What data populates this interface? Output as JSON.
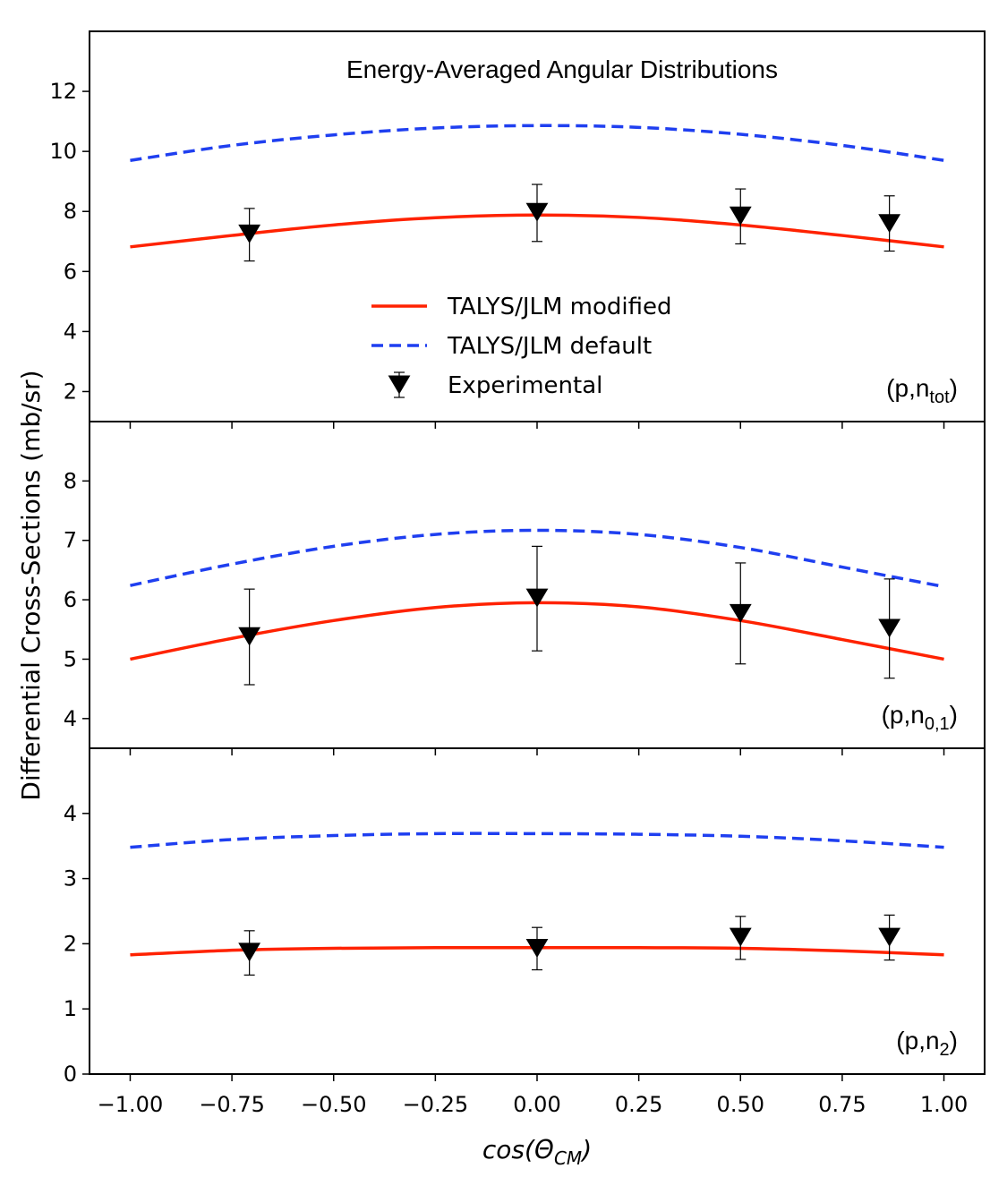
{
  "chart_data": {
    "type": "line",
    "title": "Energy-Averaged Angular Distributions",
    "xlabel": "cos(Θ_CM)",
    "ylabel": "Differential Cross-Sections (mb/sr)",
    "xlim": [
      -1.1,
      1.1
    ],
    "xticks": [
      -1.0,
      -0.75,
      -0.5,
      -0.25,
      0.0,
      0.25,
      0.5,
      0.75,
      1.0
    ],
    "xtick_labels": [
      "−1.00",
      "−0.75",
      "−0.50",
      "−0.25",
      "0.00",
      "0.25",
      "0.50",
      "0.75",
      "1.00"
    ],
    "grid": false,
    "legend": {
      "placement": "top-panel-center",
      "entries": [
        {
          "label": "TALYS/JLM modified",
          "style": "solid",
          "color": "#ff2200"
        },
        {
          "label": "TALYS/JLM default",
          "style": "dashed",
          "color": "#1f3ff0"
        },
        {
          "label": "Experimental",
          "style": "marker-triangle-down",
          "color": "#000000"
        }
      ]
    },
    "panels": [
      {
        "label_main": "(p,n",
        "label_sub": "tot",
        "label_close": ")",
        "ylim": [
          1.0,
          14.0
        ],
        "yticks": [
          2,
          4,
          6,
          8,
          10,
          12
        ],
        "series": [
          {
            "name": "TALYS/JLM modified",
            "x": [
              -1.0,
              -0.75,
              -0.5,
              -0.25,
              0.0,
              0.25,
              0.5,
              0.75,
              1.0
            ],
            "y": [
              6.82,
              7.2,
              7.55,
              7.79,
              7.88,
              7.8,
              7.55,
              7.2,
              6.82
            ]
          },
          {
            "name": "TALYS/JLM default",
            "x": [
              -1.0,
              -0.75,
              -0.5,
              -0.25,
              0.0,
              0.25,
              0.5,
              0.75,
              1.0
            ],
            "y": [
              9.7,
              10.2,
              10.55,
              10.78,
              10.86,
              10.8,
              10.57,
              10.2,
              9.7
            ]
          },
          {
            "name": "Experimental",
            "x": [
              -0.707,
              0.0,
              0.5,
              0.866
            ],
            "y": [
              7.25,
              7.97,
              7.85,
              7.6
            ],
            "yerr_low": [
              6.35,
              7.0,
              6.92,
              6.68
            ],
            "yerr_high": [
              8.1,
              8.9,
              8.75,
              8.52
            ]
          }
        ]
      },
      {
        "label_main": "(p,n",
        "label_sub": "0,1",
        "label_close": ")",
        "ylim": [
          3.5,
          9.0
        ],
        "yticks": [
          4,
          5,
          6,
          7,
          8
        ],
        "series": [
          {
            "name": "TALYS/JLM modified",
            "x": [
              -1.0,
              -0.75,
              -0.5,
              -0.25,
              0.0,
              0.25,
              0.5,
              0.75,
              1.0
            ],
            "y": [
              5.0,
              5.35,
              5.65,
              5.87,
              5.95,
              5.88,
              5.65,
              5.33,
              5.0
            ]
          },
          {
            "name": "TALYS/JLM default",
            "x": [
              -1.0,
              -0.75,
              -0.5,
              -0.25,
              0.0,
              0.25,
              0.5,
              0.75,
              1.0
            ],
            "y": [
              6.24,
              6.6,
              6.9,
              7.1,
              7.17,
              7.1,
              6.88,
              6.55,
              6.22
            ]
          },
          {
            "name": "Experimental",
            "x": [
              -0.707,
              0.0,
              0.5,
              0.866
            ],
            "y": [
              5.38,
              6.03,
              5.77,
              5.52
            ],
            "yerr_low": [
              4.57,
              5.14,
              4.92,
              4.68
            ],
            "yerr_high": [
              6.18,
              6.9,
              6.62,
              6.35
            ]
          }
        ]
      },
      {
        "label_main": "(p,n",
        "label_sub": "2",
        "label_close": ")",
        "ylim": [
          0.0,
          5.0
        ],
        "yticks": [
          0,
          1,
          2,
          3,
          4
        ],
        "series": [
          {
            "name": "TALYS/JLM modified",
            "x": [
              -1.0,
              -0.75,
              -0.5,
              -0.25,
              0.0,
              0.25,
              0.5,
              0.75,
              1.0
            ],
            "y": [
              1.83,
              1.9,
              1.93,
              1.94,
              1.94,
              1.94,
              1.93,
              1.89,
              1.83
            ]
          },
          {
            "name": "TALYS/JLM default",
            "x": [
              -1.0,
              -0.75,
              -0.5,
              -0.25,
              0.0,
              0.25,
              0.5,
              0.75,
              1.0
            ],
            "y": [
              3.48,
              3.6,
              3.66,
              3.69,
              3.69,
              3.68,
              3.65,
              3.58,
              3.48
            ]
          },
          {
            "name": "Experimental",
            "x": [
              -0.707,
              0.0,
              0.5,
              0.866
            ],
            "y": [
              1.87,
              1.93,
              2.1,
              2.1
            ],
            "yerr_low": [
              1.52,
              1.6,
              1.76,
              1.75
            ],
            "yerr_high": [
              2.2,
              2.25,
              2.42,
              2.44
            ]
          }
        ]
      }
    ]
  }
}
